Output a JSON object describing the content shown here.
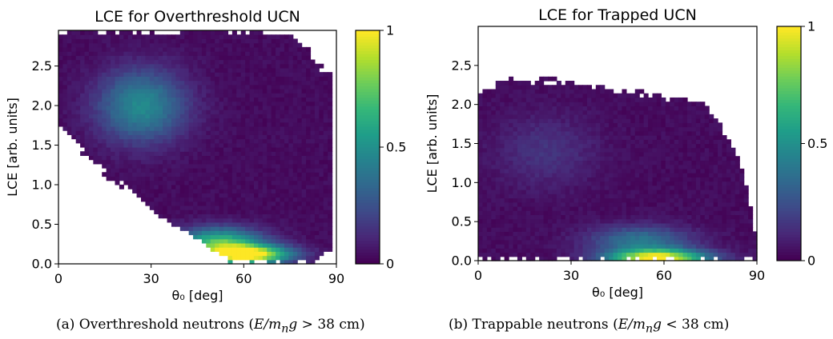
{
  "chart_data": [
    {
      "type": "heatmap",
      "title": "LCE for Overthreshold UCN",
      "xlabel": "θ₀ [deg]",
      "ylabel": "LCE [arb. units]",
      "xlim": [
        0,
        90
      ],
      "ylim": [
        0,
        2.95
      ],
      "xticks": [
        0,
        30,
        60,
        90
      ],
      "yticks": [
        0.0,
        0.5,
        1.0,
        1.5,
        2.0,
        2.5
      ],
      "ytick_labels": [
        "0.0",
        "0.5",
        "1.0",
        "1.5",
        "2.0",
        "2.5"
      ],
      "colorbar": {
        "ticks": [
          0,
          0.5,
          1
        ],
        "tick_labels": [
          "0",
          "0.5",
          "1"
        ],
        "colormap": "viridis",
        "range": [
          0,
          1
        ]
      },
      "grid": false,
      "footprint": {
        "theta": [
          0,
          5,
          10,
          15,
          20,
          25,
          30,
          35,
          40,
          45,
          50,
          55,
          60,
          65,
          70,
          75,
          80,
          85,
          88
        ],
        "lce_min": [
          1.75,
          1.55,
          1.35,
          1.15,
          1.0,
          0.85,
          0.7,
          0.55,
          0.42,
          0.3,
          0.18,
          0.06,
          0.0,
          0.0,
          0.0,
          0.0,
          0.0,
          0.1,
          0.2
        ],
        "lce_max": [
          2.95,
          2.95,
          2.95,
          2.95,
          2.95,
          2.95,
          2.95,
          2.95,
          2.95,
          2.95,
          2.95,
          2.95,
          2.95,
          2.95,
          2.92,
          2.88,
          2.7,
          2.5,
          2.35
        ]
      },
      "hotspots": [
        {
          "theta": 27,
          "lce": 2.0,
          "peak": 0.45
        },
        {
          "theta": 61,
          "lce": 0.12,
          "peak": 1.0
        },
        {
          "theta": 52,
          "lce": 0.28,
          "peak": 0.65
        }
      ]
    },
    {
      "type": "heatmap",
      "title": "LCE for Trapped UCN",
      "xlabel": "θ₀ [deg]",
      "ylabel": "LCE [arb. units]",
      "xlim": [
        0,
        90
      ],
      "ylim": [
        0,
        3.0
      ],
      "xticks": [
        0,
        30,
        60,
        90
      ],
      "yticks": [
        0.0,
        0.5,
        1.0,
        1.5,
        2.0,
        2.5
      ],
      "ytick_labels": [
        "0.0",
        "0.5",
        "1.0",
        "1.5",
        "2.0",
        "2.5"
      ],
      "colorbar": {
        "ticks": [
          0,
          0.5,
          1
        ],
        "tick_labels": [
          "0",
          "0.5",
          "1"
        ],
        "colormap": "viridis",
        "range": [
          0,
          1
        ]
      },
      "grid": false,
      "footprint": {
        "theta": [
          1,
          5,
          10,
          15,
          20,
          25,
          30,
          35,
          40,
          45,
          50,
          55,
          60,
          65,
          70,
          75,
          80,
          84,
          87,
          89
        ],
        "lce_min": [
          0.0,
          0.0,
          0.0,
          0.0,
          0.0,
          0.0,
          0.0,
          0.0,
          0.0,
          0.0,
          0.0,
          0.0,
          0.0,
          0.0,
          0.0,
          0.0,
          0.0,
          0.0,
          0.0,
          0.0
        ],
        "lce_max": [
          2.2,
          2.28,
          2.3,
          2.32,
          2.32,
          2.3,
          2.3,
          2.26,
          2.22,
          2.2,
          2.16,
          2.12,
          2.1,
          2.08,
          2.05,
          1.95,
          1.65,
          1.35,
          0.95,
          0.35
        ]
      },
      "hotspots": [
        {
          "theta": 58,
          "lce": 0.03,
          "peak": 1.0
        },
        {
          "theta": 52,
          "lce": 0.27,
          "peak": 0.35
        },
        {
          "theta": 22,
          "lce": 1.4,
          "peak": 0.12
        }
      ]
    }
  ],
  "captions": [
    {
      "prefix": "(a) Overthreshold neutrons (",
      "math": "E/m",
      "sub": "n",
      "math2": "g",
      "suffix": " > 38 cm)"
    },
    {
      "prefix": "(b) Trappable neutrons (",
      "math": "E/m",
      "sub": "n",
      "math2": "g",
      "suffix": " < 38 cm)"
    }
  ]
}
